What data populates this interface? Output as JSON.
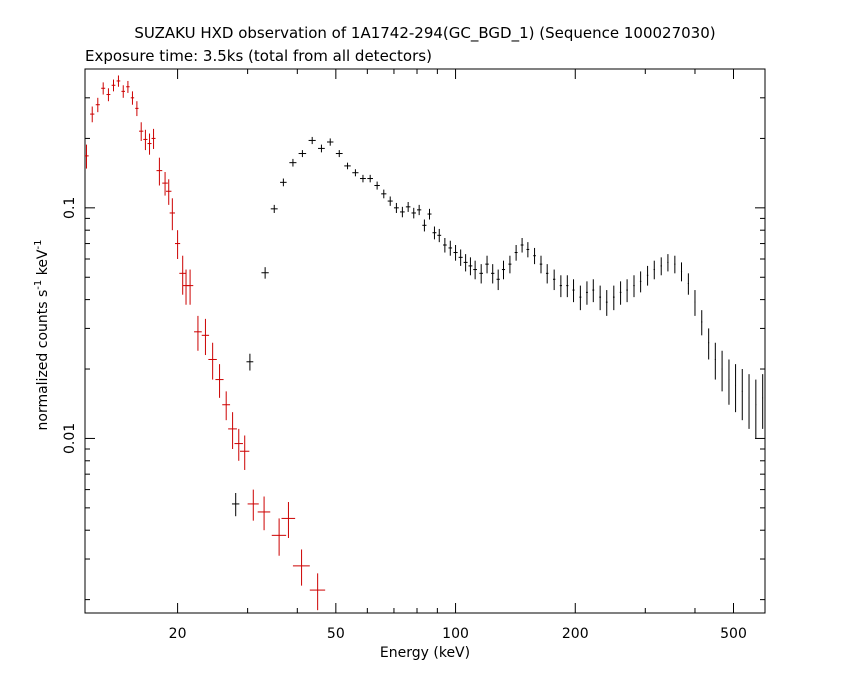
{
  "chart_data": {
    "type": "scatter",
    "title": "SUZAKU HXD observation of 1A1742-294(GC_BGD_1) (Sequence 100027030)",
    "subtitle": "Exposure time: 3.5ks (total from all detectors)",
    "xlabel": "Energy (keV)",
    "ylabel": {
      "prefix": "normalized counts s",
      "exp1": "-1",
      "middle": " keV",
      "exp2": "-1"
    },
    "x_scale": "log",
    "y_scale": "log",
    "xlim": [
      11.7,
      600
    ],
    "ylim": [
      0.00175,
      0.4
    ],
    "x_ticks": [
      {
        "value": 20,
        "label": "20"
      },
      {
        "value": 50,
        "label": "50"
      },
      {
        "value": 100,
        "label": "100"
      },
      {
        "value": 200,
        "label": "200"
      },
      {
        "value": 500,
        "label": "500"
      }
    ],
    "y_ticks": [
      {
        "value": 0.1,
        "label": "0.1"
      },
      {
        "value": 0.01,
        "label": "0.01"
      }
    ],
    "grid": false,
    "series": [
      {
        "color": "#000000",
        "points": [
          [
            28.0,
            0.0052,
            0.6,
            0.0006
          ],
          [
            30.4,
            0.0215,
            0.6,
            0.0018
          ],
          [
            33.2,
            0.0523,
            0.7,
            0.003
          ],
          [
            35.0,
            0.099,
            0.7,
            0.004
          ],
          [
            36.9,
            0.129,
            0.7,
            0.005
          ],
          [
            39.0,
            0.157,
            0.8,
            0.006
          ],
          [
            41.2,
            0.172,
            0.9,
            0.006
          ],
          [
            43.6,
            0.196,
            0.9,
            0.007
          ],
          [
            46.0,
            0.181,
            0.9,
            0.007
          ],
          [
            48.4,
            0.193,
            0.9,
            0.007
          ],
          [
            51.0,
            0.172,
            1.0,
            0.006
          ],
          [
            53.5,
            0.152,
            1.0,
            0.005
          ],
          [
            56.0,
            0.142,
            1.0,
            0.005
          ],
          [
            58.5,
            0.134,
            1.0,
            0.005
          ],
          [
            61.0,
            0.134,
            1.0,
            0.005
          ],
          [
            63.5,
            0.125,
            1.0,
            0.005
          ],
          [
            66.0,
            0.115,
            1.0,
            0.005
          ],
          [
            68.5,
            0.107,
            1.0,
            0.005
          ],
          [
            71.0,
            0.1,
            1.0,
            0.005
          ],
          [
            73.5,
            0.096,
            1.0,
            0.005
          ],
          [
            76.0,
            0.101,
            1.0,
            0.005
          ],
          [
            78.5,
            0.095,
            1.0,
            0.005
          ],
          [
            81.0,
            0.098,
            1.0,
            0.005
          ],
          [
            83.5,
            0.084,
            1.0,
            0.005
          ],
          [
            86.0,
            0.094,
            1.0,
            0.005
          ],
          [
            88.5,
            0.078,
            1.0,
            0.005
          ],
          [
            91.0,
            0.076,
            1.0,
            0.005
          ],
          [
            94.0,
            0.069,
            1.0,
            0.005
          ],
          [
            97.0,
            0.067,
            1.0,
            0.005
          ],
          [
            100.0,
            0.064,
            1.2,
            0.005
          ],
          [
            103.0,
            0.061,
            1.2,
            0.005
          ],
          [
            106.0,
            0.058,
            1.2,
            0.005
          ],
          [
            109.0,
            0.056,
            1.2,
            0.005
          ],
          [
            112.0,
            0.054,
            1.2,
            0.005
          ],
          [
            116.0,
            0.052,
            1.2,
            0.005
          ],
          [
            120.0,
            0.057,
            1.2,
            0.005
          ],
          [
            124.0,
            0.052,
            1.2,
            0.005
          ],
          [
            128.0,
            0.049,
            1.2,
            0.005
          ],
          [
            132.0,
            0.054,
            1.2,
            0.005
          ],
          [
            137.0,
            0.057,
            1.2,
            0.005
          ],
          [
            142.0,
            0.064,
            1.2,
            0.005
          ],
          [
            147.0,
            0.069,
            1.2,
            0.005
          ],
          [
            152.0,
            0.066,
            1.2,
            0.005
          ],
          [
            158.0,
            0.062,
            1.2,
            0.005
          ],
          [
            164.0,
            0.057,
            1.2,
            0.005
          ],
          [
            170.0,
            0.052,
            1.2,
            0.005
          ],
          [
            177.0,
            0.049,
            1.2,
            0.005
          ],
          [
            184.0,
            0.046,
            1.2,
            0.005
          ],
          [
            191.0,
            0.046,
            1.2,
            0.005
          ],
          [
            198.0,
            0.044,
            1.2,
            0.005
          ],
          [
            206.0,
            0.041,
            1.2,
            0.005
          ],
          [
            214.0,
            0.043,
            1.2,
            0.005
          ],
          [
            222.0,
            0.044,
            1.2,
            0.005
          ],
          [
            231.0,
            0.041,
            1.2,
            0.005
          ],
          [
            240.0,
            0.039,
            1.2,
            0.005
          ],
          [
            250.0,
            0.041,
            1.2,
            0.005
          ],
          [
            260.0,
            0.043,
            1.2,
            0.005
          ],
          [
            270.0,
            0.044,
            1.2,
            0.005
          ],
          [
            281.0,
            0.046,
            1.2,
            0.005
          ],
          [
            292.0,
            0.048,
            1.2,
            0.005
          ],
          [
            304.0,
            0.051,
            1.2,
            0.005
          ],
          [
            316.0,
            0.054,
            1.2,
            0.005
          ],
          [
            329.0,
            0.056,
            1.2,
            0.005
          ],
          [
            342.0,
            0.058,
            1.2,
            0.005
          ],
          [
            356.0,
            0.057,
            1.2,
            0.005
          ],
          [
            370.0,
            0.053,
            1.2,
            0.005
          ],
          [
            385.0,
            0.047,
            1.2,
            0.005
          ],
          [
            400.0,
            0.039,
            1.2,
            0.005
          ],
          [
            416.0,
            0.032,
            1.2,
            0.004
          ],
          [
            433.0,
            0.026,
            1.2,
            0.004
          ],
          [
            450.0,
            0.022,
            1.2,
            0.004
          ],
          [
            468.0,
            0.02,
            1.2,
            0.004
          ],
          [
            487.0,
            0.018,
            1.2,
            0.004
          ],
          [
            506.0,
            0.017,
            1.2,
            0.004
          ],
          [
            526.0,
            0.016,
            1.2,
            0.004
          ],
          [
            547.0,
            0.015,
            1.2,
            0.004
          ],
          [
            569.0,
            0.014,
            1.2,
            0.004
          ],
          [
            592.0,
            0.015,
            1.2,
            0.004
          ]
        ]
      },
      {
        "color": "#cc0000",
        "points": [
          [
            11.8,
            0.168,
            0.15,
            0.02
          ],
          [
            12.2,
            0.255,
            0.15,
            0.02
          ],
          [
            12.6,
            0.28,
            0.15,
            0.02
          ],
          [
            13.0,
            0.33,
            0.15,
            0.02
          ],
          [
            13.4,
            0.31,
            0.15,
            0.02
          ],
          [
            13.8,
            0.34,
            0.15,
            0.02
          ],
          [
            14.2,
            0.355,
            0.15,
            0.02
          ],
          [
            14.6,
            0.32,
            0.15,
            0.02
          ],
          [
            15.0,
            0.335,
            0.15,
            0.02
          ],
          [
            15.4,
            0.3,
            0.15,
            0.02
          ],
          [
            15.8,
            0.27,
            0.15,
            0.02
          ],
          [
            16.2,
            0.215,
            0.2,
            0.02
          ],
          [
            16.6,
            0.198,
            0.2,
            0.02
          ],
          [
            17.0,
            0.19,
            0.2,
            0.02
          ],
          [
            17.4,
            0.2,
            0.2,
            0.02
          ],
          [
            18.0,
            0.145,
            0.3,
            0.02
          ],
          [
            18.6,
            0.128,
            0.3,
            0.015
          ],
          [
            19.0,
            0.118,
            0.3,
            0.015
          ],
          [
            19.4,
            0.095,
            0.3,
            0.015
          ],
          [
            20.0,
            0.07,
            0.3,
            0.01
          ],
          [
            20.6,
            0.052,
            0.4,
            0.01
          ],
          [
            21.0,
            0.046,
            0.4,
            0.008
          ],
          [
            21.5,
            0.046,
            0.4,
            0.008
          ],
          [
            22.5,
            0.029,
            0.5,
            0.005
          ],
          [
            23.5,
            0.028,
            0.5,
            0.005
          ],
          [
            24.5,
            0.022,
            0.6,
            0.004
          ],
          [
            25.5,
            0.018,
            0.6,
            0.003
          ],
          [
            26.5,
            0.014,
            0.6,
            0.002
          ],
          [
            27.5,
            0.011,
            0.7,
            0.002
          ],
          [
            28.5,
            0.0095,
            0.7,
            0.0015
          ],
          [
            29.5,
            0.0088,
            0.8,
            0.0015
          ],
          [
            31.0,
            0.0052,
            1.0,
            0.0008
          ],
          [
            33.0,
            0.0048,
            1.2,
            0.0008
          ],
          [
            36.0,
            0.0038,
            1.5,
            0.0007
          ],
          [
            38.0,
            0.0045,
            1.5,
            0.0008
          ],
          [
            41.0,
            0.0028,
            2.0,
            0.0005
          ],
          [
            45.0,
            0.0022,
            2.0,
            0.0004
          ]
        ]
      }
    ]
  }
}
